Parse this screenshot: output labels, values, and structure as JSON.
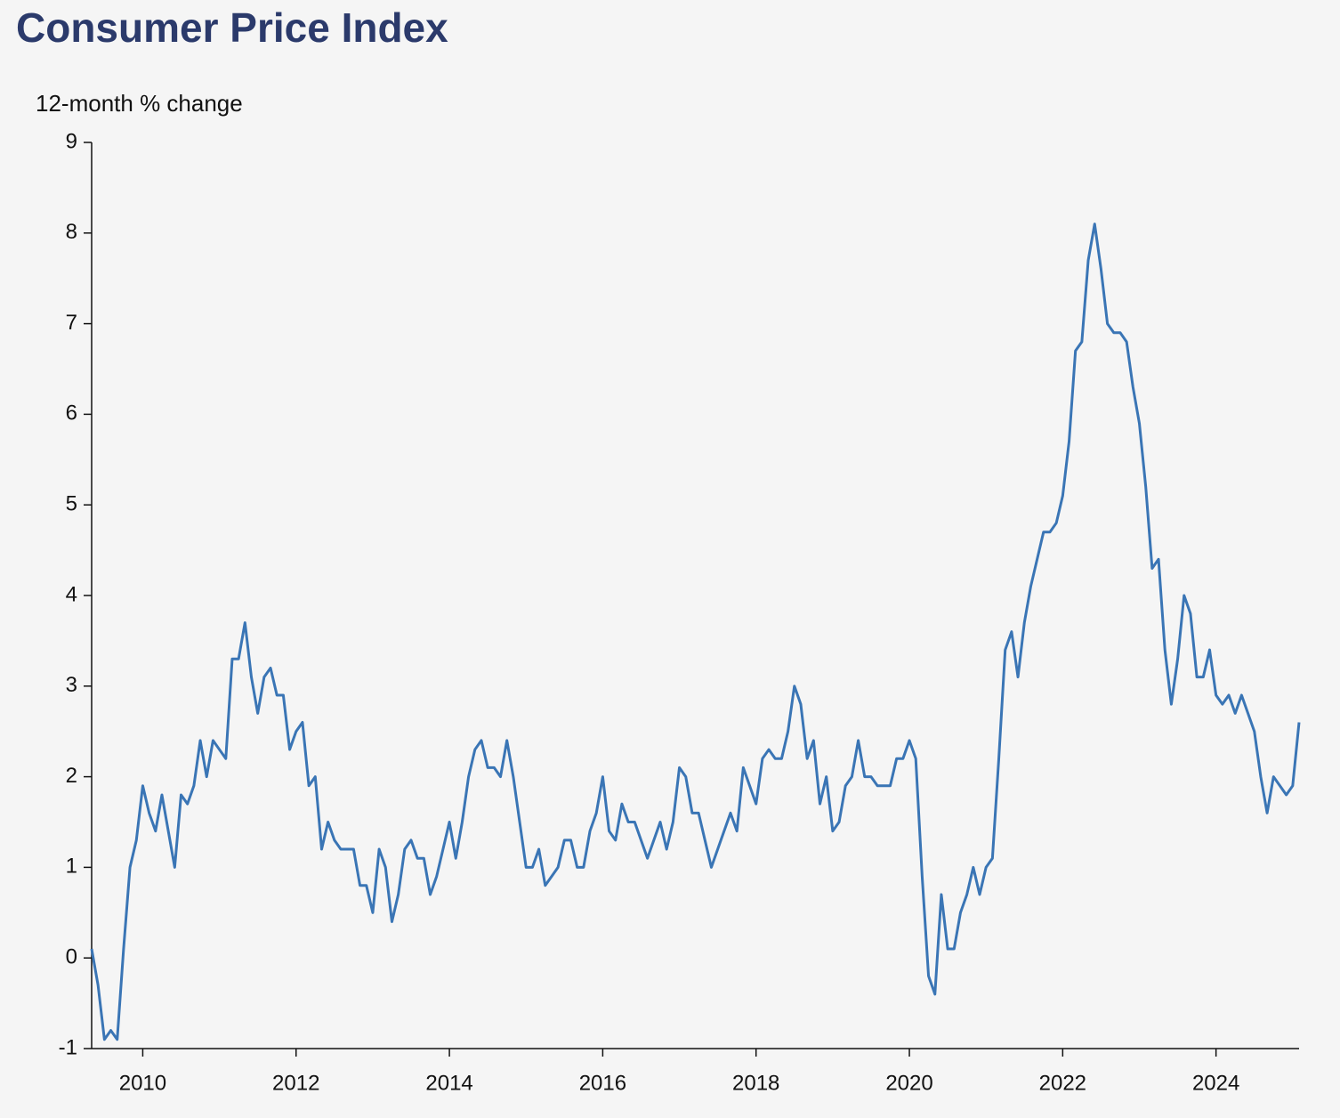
{
  "chart_data": {
    "type": "line",
    "title": "Consumer Price Index",
    "ylabel": "12-month % change",
    "x": [
      "2009-05",
      "2009-06",
      "2009-07",
      "2009-08",
      "2009-09",
      "2009-10",
      "2009-11",
      "2009-12",
      "2010-01",
      "2010-02",
      "2010-03",
      "2010-04",
      "2010-05",
      "2010-06",
      "2010-07",
      "2010-08",
      "2010-09",
      "2010-10",
      "2010-11",
      "2010-12",
      "2011-01",
      "2011-02",
      "2011-03",
      "2011-04",
      "2011-05",
      "2011-06",
      "2011-07",
      "2011-08",
      "2011-09",
      "2011-10",
      "2011-11",
      "2011-12",
      "2012-01",
      "2012-02",
      "2012-03",
      "2012-04",
      "2012-05",
      "2012-06",
      "2012-07",
      "2012-08",
      "2012-09",
      "2012-10",
      "2012-11",
      "2012-12",
      "2013-01",
      "2013-02",
      "2013-03",
      "2013-04",
      "2013-05",
      "2013-06",
      "2013-07",
      "2013-08",
      "2013-09",
      "2013-10",
      "2013-11",
      "2013-12",
      "2014-01",
      "2014-02",
      "2014-03",
      "2014-04",
      "2014-05",
      "2014-06",
      "2014-07",
      "2014-08",
      "2014-09",
      "2014-10",
      "2014-11",
      "2014-12",
      "2015-01",
      "2015-02",
      "2015-03",
      "2015-04",
      "2015-05",
      "2015-06",
      "2015-07",
      "2015-08",
      "2015-09",
      "2015-10",
      "2015-11",
      "2015-12",
      "2016-01",
      "2016-02",
      "2016-03",
      "2016-04",
      "2016-05",
      "2016-06",
      "2016-07",
      "2016-08",
      "2016-09",
      "2016-10",
      "2016-11",
      "2016-12",
      "2017-01",
      "2017-02",
      "2017-03",
      "2017-04",
      "2017-05",
      "2017-06",
      "2017-07",
      "2017-08",
      "2017-09",
      "2017-10",
      "2017-11",
      "2017-12",
      "2018-01",
      "2018-02",
      "2018-03",
      "2018-04",
      "2018-05",
      "2018-06",
      "2018-07",
      "2018-08",
      "2018-09",
      "2018-10",
      "2018-11",
      "2018-12",
      "2019-01",
      "2019-02",
      "2019-03",
      "2019-04",
      "2019-05",
      "2019-06",
      "2019-07",
      "2019-08",
      "2019-09",
      "2019-10",
      "2019-11",
      "2019-12",
      "2020-01",
      "2020-02",
      "2020-03",
      "2020-04",
      "2020-05",
      "2020-06",
      "2020-07",
      "2020-08",
      "2020-09",
      "2020-10",
      "2020-11",
      "2020-12",
      "2021-01",
      "2021-02",
      "2021-03",
      "2021-04",
      "2021-05",
      "2021-06",
      "2021-07",
      "2021-08",
      "2021-09",
      "2021-10",
      "2021-11",
      "2021-12",
      "2022-01",
      "2022-02",
      "2022-03",
      "2022-04",
      "2022-05",
      "2022-06",
      "2022-07",
      "2022-08",
      "2022-09",
      "2022-10",
      "2022-11",
      "2022-12",
      "2023-01",
      "2023-02",
      "2023-03",
      "2023-04",
      "2023-05",
      "2023-06",
      "2023-07",
      "2023-08",
      "2023-09",
      "2023-10",
      "2023-11",
      "2023-12",
      "2024-01",
      "2024-02",
      "2024-03",
      "2024-04",
      "2024-05",
      "2024-06",
      "2024-07",
      "2024-08",
      "2024-09",
      "2024-10",
      "2024-11",
      "2024-12",
      "2025-01",
      "2025-02"
    ],
    "values": [
      0.1,
      -0.3,
      -0.9,
      -0.8,
      -0.9,
      0.1,
      1.0,
      1.3,
      1.9,
      1.6,
      1.4,
      1.8,
      1.4,
      1.0,
      1.8,
      1.7,
      1.9,
      2.4,
      2.0,
      2.4,
      2.3,
      2.2,
      3.3,
      3.3,
      3.7,
      3.1,
      2.7,
      3.1,
      3.2,
      2.9,
      2.9,
      2.3,
      2.5,
      2.6,
      1.9,
      2.0,
      1.2,
      1.5,
      1.3,
      1.2,
      1.2,
      1.2,
      0.8,
      0.8,
      0.5,
      1.2,
      1.0,
      0.4,
      0.7,
      1.2,
      1.3,
      1.1,
      1.1,
      0.7,
      0.9,
      1.2,
      1.5,
      1.1,
      1.5,
      2.0,
      2.3,
      2.4,
      2.1,
      2.1,
      2.0,
      2.4,
      2.0,
      1.5,
      1.0,
      1.0,
      1.2,
      0.8,
      0.9,
      1.0,
      1.3,
      1.3,
      1.0,
      1.0,
      1.4,
      1.6,
      2.0,
      1.4,
      1.3,
      1.7,
      1.5,
      1.5,
      1.3,
      1.1,
      1.3,
      1.5,
      1.2,
      1.5,
      2.1,
      2.0,
      1.6,
      1.6,
      1.3,
      1.0,
      1.2,
      1.4,
      1.6,
      1.4,
      2.1,
      1.9,
      1.7,
      2.2,
      2.3,
      2.2,
      2.2,
      2.5,
      3.0,
      2.8,
      2.2,
      2.4,
      1.7,
      2.0,
      1.4,
      1.5,
      1.9,
      2.0,
      2.4,
      2.0,
      2.0,
      1.9,
      1.9,
      1.9,
      2.2,
      2.2,
      2.4,
      2.2,
      0.9,
      -0.2,
      -0.4,
      0.7,
      0.1,
      0.1,
      0.5,
      0.7,
      1.0,
      0.7,
      1.0,
      1.1,
      2.2,
      3.4,
      3.6,
      3.1,
      3.7,
      4.1,
      4.4,
      4.7,
      4.7,
      4.8,
      5.1,
      5.7,
      6.7,
      6.8,
      7.7,
      8.1,
      7.6,
      7.0,
      6.9,
      6.9,
      6.8,
      6.3,
      5.9,
      5.2,
      4.3,
      4.4,
      3.4,
      2.8,
      3.3,
      4.0,
      3.8,
      3.1,
      3.1,
      3.4,
      2.9,
      2.8,
      2.9,
      2.7,
      2.9,
      2.7,
      2.5,
      2.0,
      1.6,
      2.0,
      1.9,
      1.8,
      1.9,
      2.6
    ],
    "color": "#3a75b5",
    "xlim": [
      "2009-05",
      "2025-02"
    ],
    "xticks": [
      2010,
      2012,
      2014,
      2016,
      2018,
      2020,
      2022,
      2024
    ],
    "ylim": [
      -1,
      9
    ],
    "yticks": [
      -1,
      0,
      1,
      2,
      3,
      4,
      5,
      6,
      7,
      8,
      9
    ]
  }
}
